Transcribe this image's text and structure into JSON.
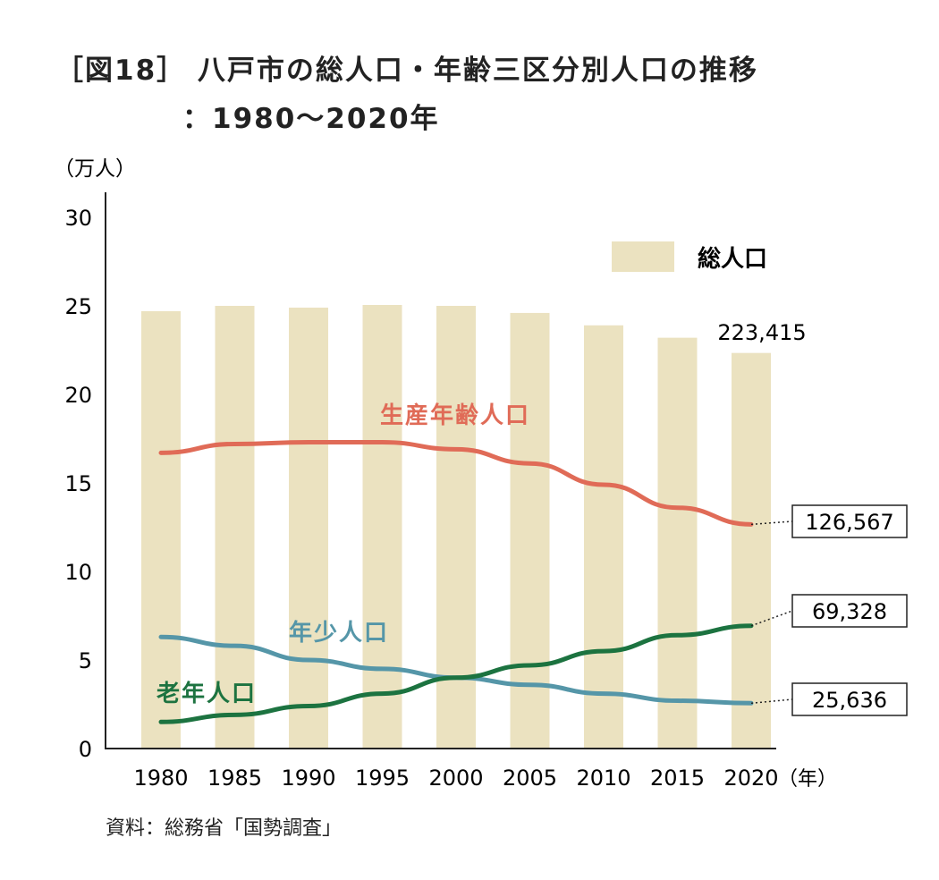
{
  "title_line1": "［図18］ 八戸市の総人口・年齢三区分別人口の推移",
  "title_line2": "：1980～2020年",
  "source": "資料：総務省「国勢調査」",
  "chart_data": {
    "type": "bar+line",
    "ylabel": "（万人）",
    "xlabel": "（年）",
    "ylim": [
      0,
      30
    ],
    "yticks": [
      0,
      5,
      10,
      15,
      20,
      25,
      30
    ],
    "categories": [
      "1980",
      "1985",
      "1990",
      "1995",
      "2000",
      "2005",
      "2010",
      "2015",
      "2020"
    ],
    "grid": false,
    "legend": {
      "label": "総人口",
      "placement": "top-right"
    },
    "series": [
      {
        "name": "総人口",
        "kind": "bar",
        "color": "#ebe2c0",
        "values": [
          24.7,
          25.0,
          24.9,
          25.05,
          25.0,
          24.6,
          23.9,
          23.2,
          22.34
        ],
        "end_label": "223,415"
      },
      {
        "name": "生産年齢人口",
        "kind": "line",
        "color": "#e06b57",
        "values": [
          16.7,
          17.2,
          17.3,
          17.3,
          16.9,
          16.1,
          14.9,
          13.6,
          12.66
        ],
        "end_label": "126,567"
      },
      {
        "name": "年少人口",
        "kind": "line",
        "color": "#5596a8",
        "values": [
          6.3,
          5.8,
          5.0,
          4.5,
          4.0,
          3.6,
          3.1,
          2.7,
          2.56
        ],
        "end_label": "25,636"
      },
      {
        "name": "老年人口",
        "kind": "line",
        "color": "#1c7340",
        "values": [
          1.5,
          1.9,
          2.4,
          3.1,
          4.0,
          4.7,
          5.5,
          6.4,
          6.93
        ],
        "end_label": "69,328"
      }
    ]
  }
}
